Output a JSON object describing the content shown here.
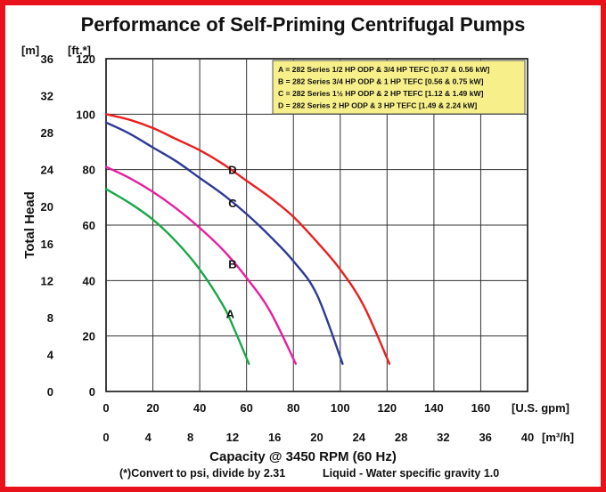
{
  "title": "Performance of Self-Priming Centrifugal Pumps",
  "y_unit_m": "[m]",
  "y_unit_ft": "[ft.*]",
  "x_unit_gpm": "[U.S. gpm]",
  "x_unit_m3h": "[m³/h]",
  "ylabel": "Total Head",
  "xlabel": "Capacity @ 3450 RPM (60 Hz)",
  "note_left": "(*)Convert to psi, divide by 2.31",
  "note_right": "Liquid - Water specific gravity 1.0",
  "colors": {
    "A": "#1aa84a",
    "B": "#e81ea0",
    "C": "#2e3a96",
    "D": "#e82020",
    "legend_bg": "#f7f08a"
  },
  "chart_data": {
    "type": "line",
    "title": "Performance of Self-Priming Centrifugal Pumps",
    "xlabel": "Capacity @ 3450 RPM (60 Hz)",
    "ylabel": "Total Head",
    "xlim": [
      0,
      180
    ],
    "ylim": [
      0,
      120
    ],
    "x_ticks": [
      0,
      20,
      40,
      60,
      80,
      100,
      120,
      140,
      160
    ],
    "y_ticks": [
      0,
      20,
      40,
      60,
      80,
      100,
      120
    ],
    "y_m_ticks": [
      0,
      4,
      8,
      12,
      16,
      20,
      24,
      28,
      32,
      36
    ],
    "x_m3h_ticks": [
      0,
      4,
      8,
      12,
      16,
      20,
      24,
      28,
      32,
      36,
      40
    ],
    "grid": true,
    "legend_position": "top-right",
    "legend": [
      "A = 282 Series 1/2 HP ODP & 3/4 HP TEFC [0.37 & 0.56 kW]",
      "B = 282 Series 3/4 HP ODP & 1 HP TEFC [0.56 & 0.75 kW]",
      "C = 282 Series 1½ HP ODP & 2 HP TEFC [1.12 & 1.49 kW]",
      "D = 282 Series 2 HP ODP & 3 HP TEFC [1.49 & 2.24 kW]"
    ],
    "series": [
      {
        "name": "A",
        "x": [
          0,
          10,
          20,
          30,
          40,
          50,
          55,
          61
        ],
        "y": [
          73,
          68,
          62,
          54,
          44,
          31,
          22,
          10
        ],
        "label_at": [
          53,
          28
        ]
      },
      {
        "name": "B",
        "x": [
          0,
          10,
          20,
          30,
          40,
          50,
          60,
          70,
          81
        ],
        "y": [
          81,
          77,
          72,
          66,
          59,
          51,
          41,
          29,
          10
        ],
        "label_at": [
          54,
          46
        ]
      },
      {
        "name": "C",
        "x": [
          0,
          10,
          20,
          30,
          40,
          50,
          60,
          70,
          80,
          90,
          101
        ],
        "y": [
          97,
          93,
          88,
          83,
          77,
          71,
          64,
          56,
          47,
          35,
          10
        ],
        "label_at": [
          54,
          68
        ]
      },
      {
        "name": "D",
        "x": [
          0,
          10,
          20,
          30,
          40,
          50,
          60,
          70,
          80,
          90,
          100,
          110,
          121
        ],
        "y": [
          100,
          98,
          95,
          91,
          87,
          82,
          76,
          70,
          63,
          54,
          44,
          31,
          10
        ],
        "label_at": [
          54,
          80
        ]
      }
    ]
  }
}
